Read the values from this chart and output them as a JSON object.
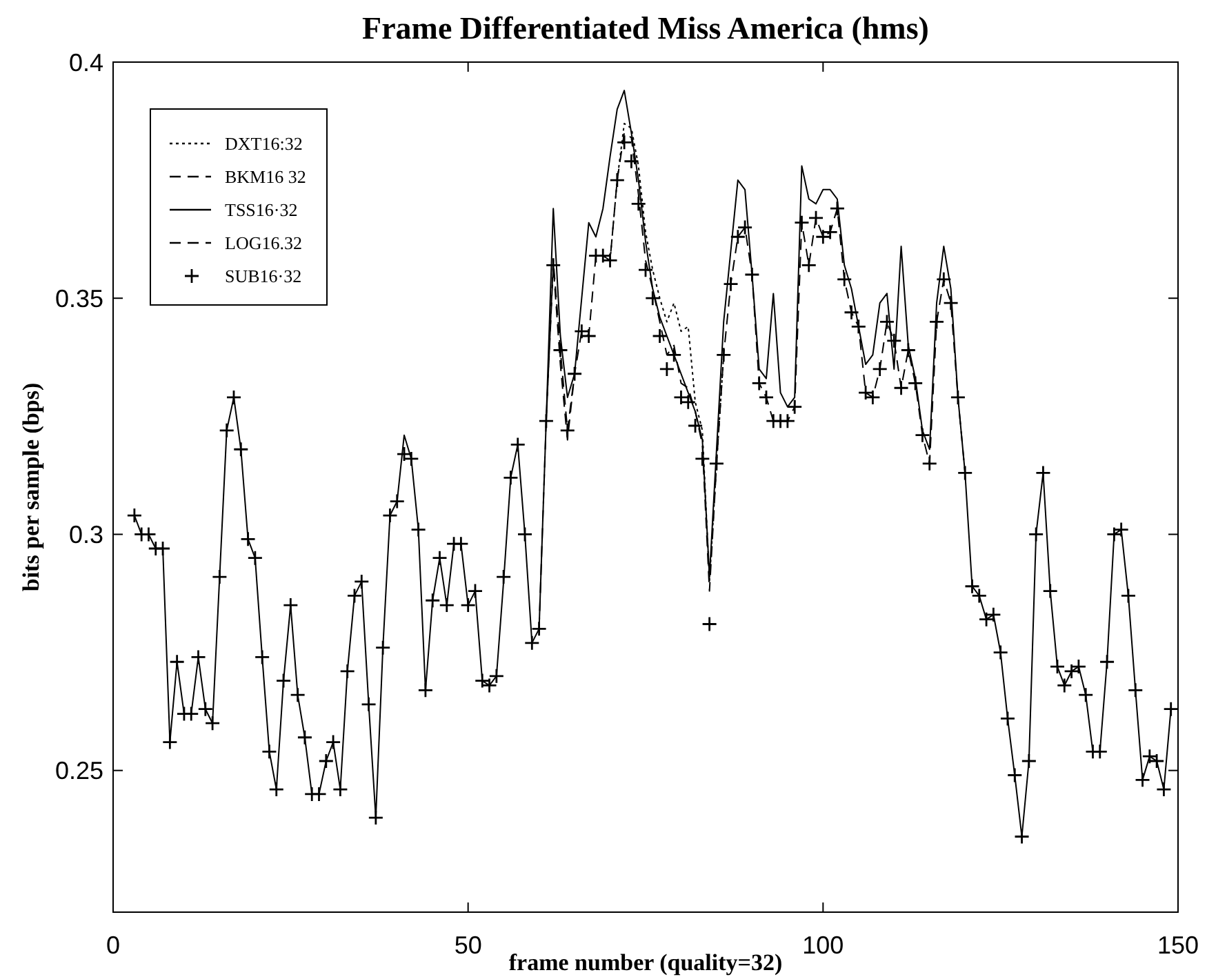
{
  "chart_data": {
    "type": "line",
    "title": "Frame Differentiated Miss America (hms)",
    "xlabel": "frame number (quality=32)",
    "ylabel": "bits per sample (bps)",
    "x": [
      3,
      4,
      5,
      6,
      7,
      8,
      9,
      10,
      11,
      12,
      13,
      14,
      15,
      16,
      17,
      18,
      19,
      20,
      21,
      22,
      23,
      24,
      25,
      26,
      27,
      28,
      29,
      30,
      31,
      32,
      33,
      34,
      35,
      36,
      37,
      38,
      39,
      40,
      41,
      42,
      43,
      44,
      45,
      46,
      47,
      48,
      49,
      50,
      51,
      52,
      53,
      54,
      55,
      56,
      57,
      58,
      59,
      60,
      61,
      62,
      63,
      64,
      65,
      66,
      67,
      68,
      69,
      70,
      71,
      72,
      73,
      74,
      75,
      76,
      77,
      78,
      79,
      80,
      81,
      82,
      83,
      84,
      85,
      86,
      87,
      88,
      89,
      90,
      91,
      92,
      93,
      94,
      95,
      96,
      97,
      98,
      99,
      100,
      101,
      102,
      103,
      104,
      105,
      106,
      107,
      108,
      109,
      110,
      111,
      112,
      113,
      114,
      115,
      116,
      117,
      118,
      119,
      120,
      121,
      122,
      123,
      124,
      125,
      126,
      127,
      128,
      129,
      130,
      131,
      132,
      133,
      134,
      135,
      136,
      137,
      138,
      139,
      140,
      141,
      142,
      143,
      144,
      145,
      146,
      147,
      148,
      149
    ],
    "xlim": [
      0,
      150
    ],
    "xticks": [
      0,
      50,
      100,
      150
    ],
    "ylim": [
      0.22,
      0.4
    ],
    "yticks": [
      0.25,
      0.3,
      0.35,
      0.4
    ],
    "grid": false,
    "legend": "top left",
    "series": [
      {
        "name": "DXT16:32",
        "color": "#000000",
        "line_style": "dotted",
        "x": [
          70,
          71,
          72,
          73,
          74,
          75,
          76,
          77,
          78,
          79,
          80,
          81,
          82,
          83,
          84,
          85,
          86
        ],
        "values": [
          0.358,
          0.375,
          0.387,
          0.386,
          0.378,
          0.364,
          0.356,
          0.35,
          0.345,
          0.349,
          0.343,
          0.344,
          0.328,
          0.322,
          0.29,
          0.315,
          0.338
        ]
      },
      {
        "name": "BKM16 32",
        "color": "#000000",
        "line_style": "dashed",
        "x": [
          60,
          61,
          62,
          63,
          64,
          65,
          66,
          67,
          68,
          69,
          70,
          71,
          72,
          73,
          74,
          75,
          76,
          77,
          78,
          79,
          80,
          81,
          82,
          83,
          84,
          85,
          86,
          87,
          88,
          89,
          90,
          91,
          92,
          93,
          94,
          95,
          96,
          97,
          98,
          99,
          100,
          101,
          102,
          103,
          104,
          105,
          106,
          107,
          108,
          109,
          110,
          111,
          112,
          113,
          114,
          115,
          116,
          117,
          118,
          119,
          120
        ],
        "values": [
          0.28,
          0.324,
          0.358,
          0.339,
          0.322,
          0.334,
          0.343,
          0.342,
          0.359,
          0.359,
          0.358,
          0.375,
          0.385,
          0.384,
          0.372,
          0.358,
          0.352,
          0.345,
          0.338,
          0.34,
          0.332,
          0.331,
          0.326,
          0.319,
          0.288,
          0.315,
          0.338,
          0.353,
          0.363,
          0.365,
          0.355,
          0.332,
          0.329,
          0.324,
          0.324,
          0.324,
          0.327,
          0.366,
          0.357,
          0.367,
          0.363,
          0.364,
          0.369,
          0.354,
          0.347,
          0.344,
          0.33,
          0.329,
          0.335,
          0.345,
          0.341,
          0.331,
          0.339,
          0.332,
          0.321,
          0.315,
          0.345,
          0.354,
          0.349,
          0.329,
          0.313
        ]
      },
      {
        "name": "TSS16·32",
        "color": "#000000",
        "line_style": "solid",
        "values": [
          0.304,
          0.3,
          0.3,
          0.297,
          0.297,
          0.256,
          0.273,
          0.262,
          0.262,
          0.274,
          0.263,
          0.26,
          0.291,
          0.322,
          0.329,
          0.318,
          0.299,
          0.295,
          0.274,
          0.254,
          0.246,
          0.269,
          0.285,
          0.266,
          0.257,
          0.245,
          0.245,
          0.252,
          0.256,
          0.246,
          0.271,
          0.287,
          0.29,
          0.264,
          0.24,
          0.276,
          0.304,
          0.307,
          0.321,
          0.316,
          0.301,
          0.267,
          0.286,
          0.295,
          0.285,
          0.298,
          0.298,
          0.285,
          0.288,
          0.269,
          0.268,
          0.27,
          0.29,
          0.312,
          0.319,
          0.3,
          0.277,
          0.28,
          0.324,
          0.369,
          0.342,
          0.329,
          0.334,
          0.35,
          0.366,
          0.363,
          0.369,
          0.38,
          0.39,
          0.394,
          0.385,
          0.375,
          0.362,
          0.352,
          0.346,
          0.342,
          0.338,
          0.334,
          0.33,
          0.326,
          0.32,
          0.291,
          0.318,
          0.345,
          0.36,
          0.375,
          0.373,
          0.355,
          0.335,
          0.333,
          0.351,
          0.33,
          0.327,
          0.329,
          0.378,
          0.371,
          0.37,
          0.373,
          0.373,
          0.371,
          0.357,
          0.352,
          0.344,
          0.336,
          0.338,
          0.349,
          0.351,
          0.335,
          0.361,
          0.34,
          0.333,
          0.322,
          0.318,
          0.349,
          0.361,
          0.352,
          0.329,
          0.313,
          0.289,
          0.287,
          0.282,
          0.283,
          0.275,
          0.261,
          0.249,
          0.236,
          0.252,
          0.3,
          0.313,
          0.288,
          0.272,
          0.268,
          0.271,
          0.272,
          0.266,
          0.254,
          0.254,
          0.273,
          0.3,
          0.301,
          0.287,
          0.267,
          0.248,
          0.253,
          0.252,
          0.246,
          0.263
        ]
      },
      {
        "name": "LOG16.32",
        "color": "#000000",
        "line_style": "dashed",
        "x": [
          61,
          62,
          63,
          64,
          65
        ],
        "values": [
          0.324,
          0.357,
          0.336,
          0.32,
          0.334
        ]
      },
      {
        "name": "SUB16·32",
        "type": "scatter",
        "color": "#000000",
        "marker": "cross",
        "values": [
          0.304,
          0.3,
          0.3,
          0.297,
          0.297,
          0.256,
          0.273,
          0.262,
          0.262,
          0.274,
          0.263,
          0.26,
          0.291,
          0.322,
          0.329,
          0.318,
          0.299,
          0.295,
          0.274,
          0.254,
          0.246,
          0.269,
          0.285,
          0.266,
          0.257,
          0.245,
          0.245,
          0.252,
          0.256,
          0.246,
          0.271,
          0.287,
          0.29,
          0.264,
          0.24,
          0.276,
          0.304,
          0.307,
          0.317,
          0.316,
          0.301,
          0.267,
          0.286,
          0.295,
          0.285,
          0.298,
          0.298,
          0.285,
          0.288,
          0.269,
          0.268,
          0.27,
          0.291,
          0.312,
          0.319,
          0.3,
          0.277,
          0.28,
          0.324,
          0.357,
          0.339,
          0.322,
          0.334,
          0.343,
          0.342,
          0.359,
          0.359,
          0.358,
          0.375,
          0.383,
          0.379,
          0.37,
          0.356,
          0.35,
          0.342,
          0.335,
          0.338,
          0.329,
          0.328,
          0.323,
          0.316,
          0.281,
          0.315,
          0.338,
          0.353,
          0.363,
          0.365,
          0.355,
          0.332,
          0.329,
          0.324,
          0.324,
          0.324,
          0.327,
          0.366,
          0.357,
          0.367,
          0.363,
          0.364,
          0.369,
          0.354,
          0.347,
          0.344,
          0.33,
          0.329,
          0.335,
          0.345,
          0.341,
          0.331,
          0.339,
          0.332,
          0.321,
          0.315,
          0.345,
          0.354,
          0.349,
          0.329,
          0.313,
          0.289,
          0.287,
          0.282,
          0.283,
          0.275,
          0.261,
          0.249,
          0.236,
          0.252,
          0.3,
          0.313,
          0.288,
          0.272,
          0.268,
          0.271,
          0.272,
          0.266,
          0.254,
          0.254,
          0.273,
          0.3,
          0.301,
          0.287,
          0.267,
          0.248,
          0.253,
          0.252,
          0.246,
          0.263
        ]
      }
    ]
  }
}
